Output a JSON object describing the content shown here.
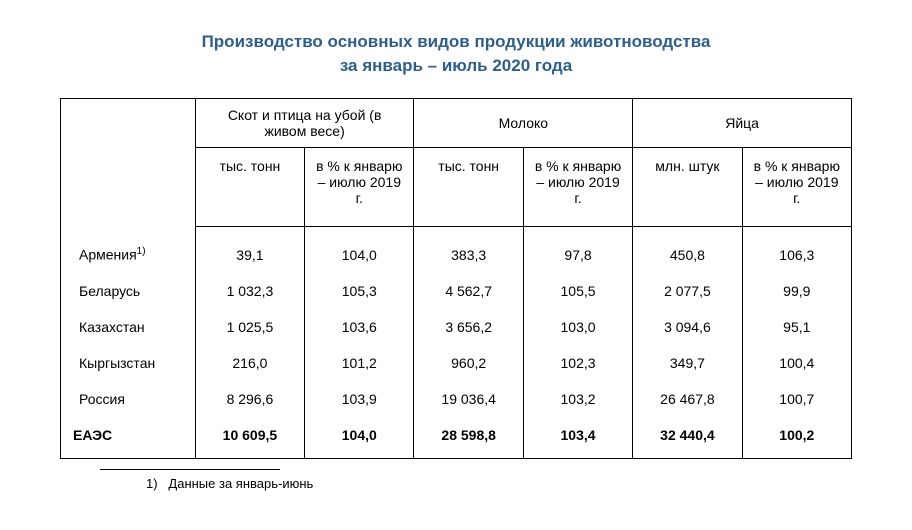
{
  "title_line1": "Производство основных видов продукции животноводства",
  "title_line2": "за январь – июль 2020 года",
  "header": {
    "group1": "Скот и птица на убой (в живом весе)",
    "group2": "Молоко",
    "group3": "Яйца",
    "sub_tons": "тыс. тонн",
    "sub_pct": "в % к январю – июлю 2019 г.",
    "sub_mln": "млн. штук"
  },
  "rows": [
    {
      "name": "Армения",
      "sup": "1)",
      "v1": "39,1",
      "v2": "104,0",
      "v3": "383,3",
      "v4": "97,8",
      "v5": "450,8",
      "v6": "106,3"
    },
    {
      "name": "Беларусь",
      "sup": "",
      "v1": "1 032,3",
      "v2": "105,3",
      "v3": "4 562,7",
      "v4": "105,5",
      "v5": "2 077,5",
      "v6": "99,9"
    },
    {
      "name": "Казахстан",
      "sup": "",
      "v1": "1 025,5",
      "v2": "103,6",
      "v3": "3 656,2",
      "v4": "103,0",
      "v5": "3 094,6",
      "v6": "95,1"
    },
    {
      "name": "Кыргызстан",
      "sup": "",
      "v1": "216,0",
      "v2": "101,2",
      "v3": "960,2",
      "v4": "102,3",
      "v5": "349,7",
      "v6": "100,4"
    },
    {
      "name": "Россия",
      "sup": "",
      "v1": "8 296,6",
      "v2": "103,9",
      "v3": "19 036,4",
      "v4": "103,2",
      "v5": "26 467,8",
      "v6": "100,7"
    }
  ],
  "total": {
    "name": "ЕАЭС",
    "v1": "10 609,5",
    "v2": "104,0",
    "v3": "28 598,8",
    "v4": "103,4",
    "v5": "32 440,4",
    "v6": "100,2"
  },
  "footnote": {
    "num": "1)",
    "text": "Данные за январь-июнь"
  }
}
